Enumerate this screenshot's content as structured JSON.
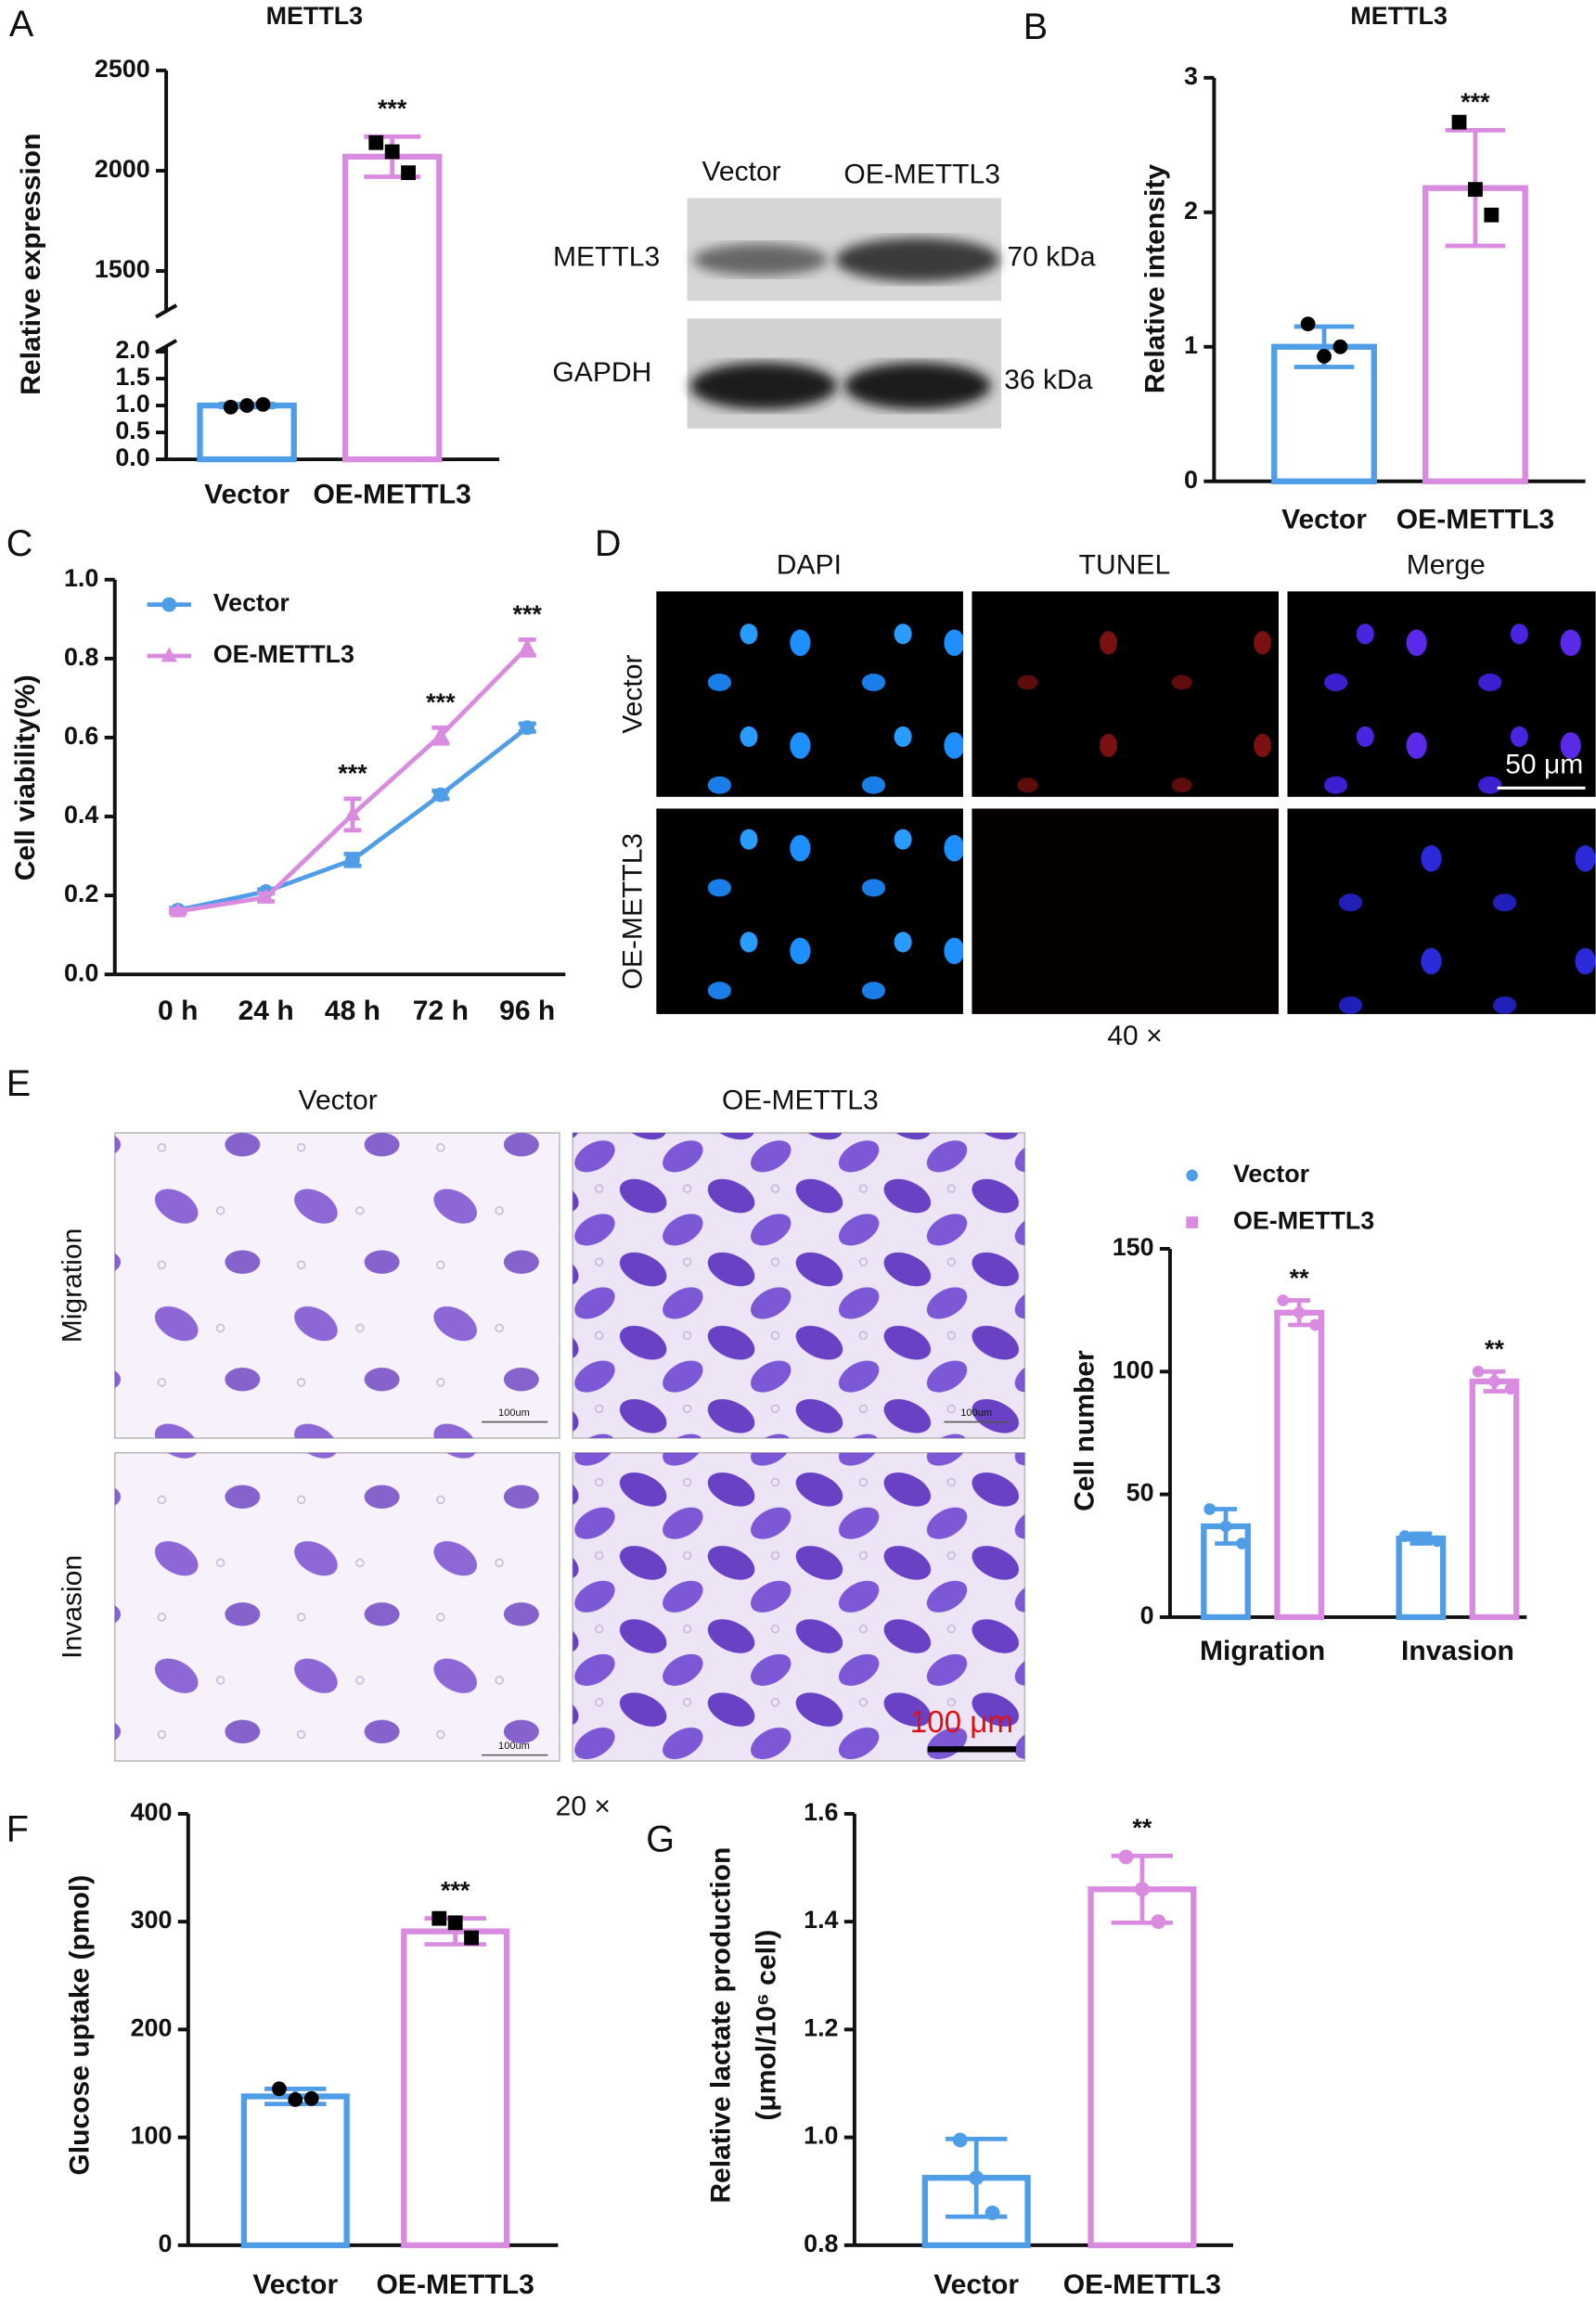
{
  "panel_labels": [
    "A",
    "B",
    "C",
    "D",
    "E",
    "F",
    "G"
  ],
  "western_blot": {
    "lanes": [
      "Vector",
      "OE-METTL3"
    ],
    "rows": [
      {
        "protein": "METTL3",
        "size": "70 kDa"
      },
      {
        "protein": "GAPDH",
        "size": "36 kDa"
      }
    ]
  },
  "tunel": {
    "columns": [
      "DAPI",
      "TUNEL",
      "Merge"
    ],
    "rows": [
      "Vector",
      "OE-METTL3"
    ],
    "scale_bar": "50 μm",
    "magnification": "40 ×"
  },
  "transwell": {
    "columns": [
      "Vector",
      "OE-METTL3"
    ],
    "rows": [
      "Migration",
      "Invasion"
    ],
    "scale_bar": "100 μm",
    "small_scale_label": "100um",
    "magnification": "20 ×"
  },
  "chart_data": [
    {
      "type": "bar",
      "title": "METTL3",
      "ylabel": "Relative expression",
      "categories": [
        "Vector",
        "OE-METTL3"
      ],
      "values": [
        1.0,
        2070
      ],
      "errors": [
        0.03,
        100
      ],
      "points": [
        [
          0.97,
          1.0,
          1.02
        ],
        [
          2140,
          2095,
          1990
        ]
      ],
      "colors": [
        "#4f9de6",
        "#d98be0"
      ],
      "markers": [
        "circle",
        "square"
      ],
      "point_color": "#000000",
      "ylim_segments": [
        [
          0,
          2.1
        ],
        [
          1300,
          2500
        ]
      ],
      "yticks": [
        {
          "value": 0,
          "label": "0.0"
        },
        0.5,
        {
          "value": 1,
          "label": "1.0"
        },
        1.5,
        {
          "value": 2,
          "label": "2.0"
        },
        1500,
        2000,
        2500
      ],
      "annotations": [
        null,
        "***"
      ]
    },
    {
      "type": "bar",
      "title": "METTL3",
      "ylabel": "Relative intensity",
      "categories": [
        "Vector",
        "OE-METTL3"
      ],
      "values": [
        1.0,
        2.18
      ],
      "errors": [
        0.15,
        0.43
      ],
      "points": [
        [
          1.17,
          0.93,
          1.0
        ],
        [
          2.67,
          2.17,
          1.98
        ]
      ],
      "colors": [
        "#4f9de6",
        "#d98be0"
      ],
      "markers": [
        "circle",
        "square"
      ],
      "point_color": "#000000",
      "ylim": [
        0,
        3
      ],
      "yticks": [
        0,
        1,
        2,
        3
      ],
      "annotations": [
        null,
        "***"
      ]
    },
    {
      "type": "line",
      "ylabel": "Cell viability(%)",
      "categories": [
        "0 h",
        "24 h",
        "48 h",
        "72 h",
        "96 h"
      ],
      "series": [
        {
          "name": "Vector",
          "color": "#4f9de6",
          "marker": "circle",
          "values": [
            0.163,
            0.21,
            0.29,
            0.455,
            0.625
          ],
          "errors": [
            0.005,
            0.005,
            0.015,
            0.01,
            0.01
          ]
        },
        {
          "name": "OE-METTL3",
          "color": "#d98be0",
          "marker": "triangle",
          "values": [
            0.16,
            0.195,
            0.405,
            0.605,
            0.828
          ],
          "errors": [
            0.005,
            0.01,
            0.04,
            0.02,
            0.02
          ]
        }
      ],
      "ylim": [
        0,
        1
      ],
      "yticks": [
        {
          "value": 0,
          "label": "0.0"
        },
        0.2,
        0.4,
        0.6,
        0.8,
        {
          "value": 1,
          "label": "1.0"
        }
      ],
      "annotations": [
        null,
        null,
        "***",
        "***",
        "***"
      ],
      "legend": "upper-left"
    },
    {
      "type": "bar",
      "ylabel": "Cell number",
      "categories": [
        "Migration",
        "Invasion"
      ],
      "series": [
        {
          "name": "Vector",
          "color": "#4f9de6",
          "marker": "circle",
          "values": [
            37,
            32
          ],
          "errors": [
            7,
            2
          ],
          "points": [
            [
              44,
              37,
              30
            ],
            [
              33,
              32,
              31
            ]
          ]
        },
        {
          "name": "OE-METTL3",
          "color": "#d98be0",
          "marker": "square",
          "values": [
            124,
            96
          ],
          "errors": [
            5,
            4
          ],
          "points": [
            [
              129,
              124,
              119
            ],
            [
              100,
              96,
              93
            ]
          ]
        }
      ],
      "ylim": [
        0,
        150
      ],
      "yticks": [
        0,
        50,
        100,
        150
      ],
      "annotations": [
        "**",
        "**"
      ],
      "legend": "upper-left"
    },
    {
      "type": "bar",
      "ylabel": "Glucose uptake (pmol)",
      "categories": [
        "Vector",
        "OE-METTL3"
      ],
      "values": [
        138,
        291
      ],
      "errors": [
        7,
        12
      ],
      "points": [
        [
          145,
          135,
          136
        ],
        [
          303,
          299,
          285
        ]
      ],
      "colors": [
        "#4f9de6",
        "#d98be0"
      ],
      "markers": [
        "circle",
        "square"
      ],
      "point_color": "#000000",
      "ylim": [
        0,
        400
      ],
      "yticks": [
        0,
        100,
        200,
        300,
        400
      ],
      "annotations": [
        null,
        "***"
      ]
    },
    {
      "type": "bar",
      "ylabel": [
        "Relative lactate production",
        "(μmol/10⁶ cell)"
      ],
      "categories": [
        "Vector",
        "OE-METTL3"
      ],
      "values": [
        0.925,
        1.46
      ],
      "errors": [
        0.072,
        0.062
      ],
      "points": [
        [
          0.995,
          0.925,
          0.86
        ],
        [
          1.52,
          1.46,
          1.4
        ]
      ],
      "colors": [
        "#4f9de6",
        "#d98be0"
      ],
      "markers": [
        "circle",
        "circle"
      ],
      "ylim": [
        0.8,
        1.6
      ],
      "yticks": [
        0.8,
        {
          "value": 1.0,
          "label": "1.0"
        },
        1.2,
        1.4,
        1.6
      ],
      "annotations": [
        null,
        "**"
      ]
    }
  ]
}
